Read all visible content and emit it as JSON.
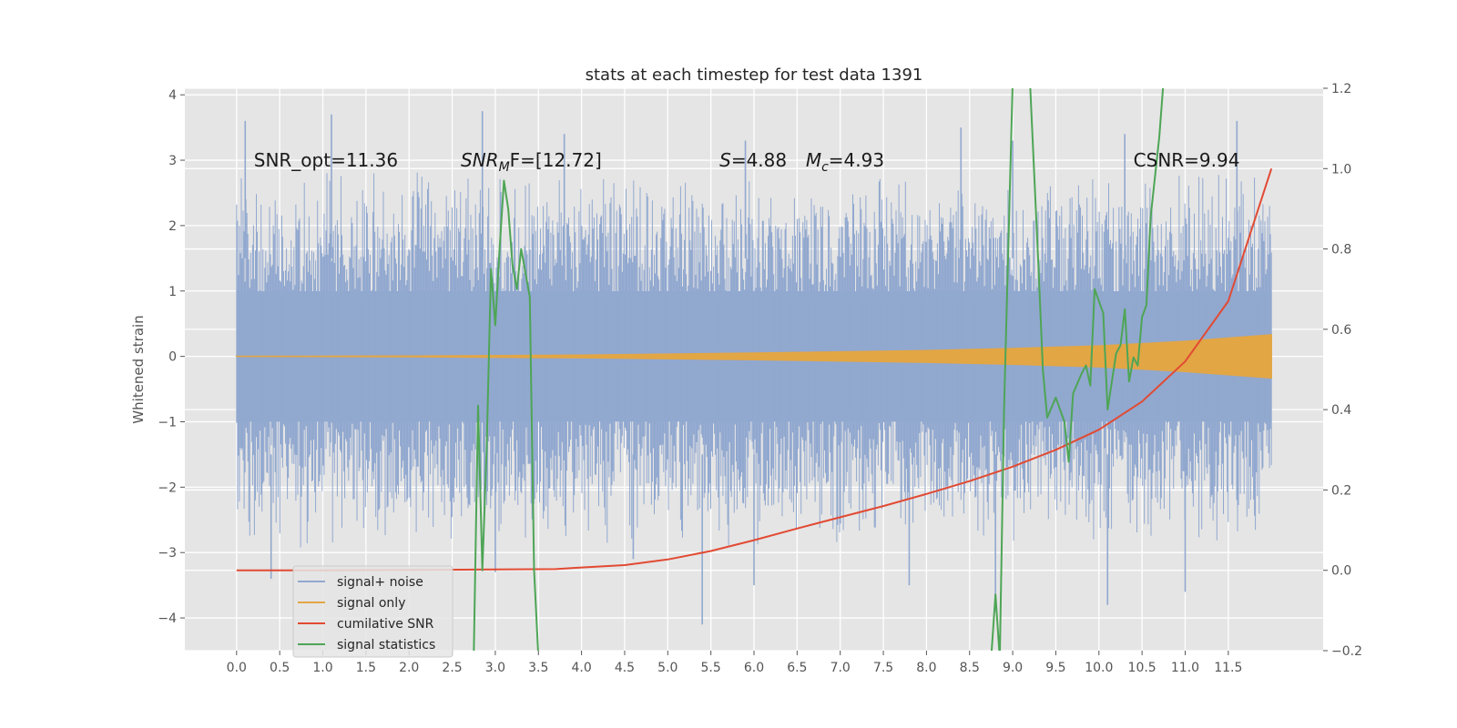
{
  "chart_data": {
    "type": "line",
    "title": "stats at each timestep for test data 1391",
    "ylabel": "Whitened strain",
    "xlabel": "",
    "xlim": [
      -0.6,
      12.6
    ],
    "ylim": [
      -4.5,
      4.1
    ],
    "y2lim": [
      -0.2,
      1.2
    ],
    "x_ticks": [
      0.0,
      0.5,
      1.0,
      1.5,
      2.0,
      2.5,
      3.0,
      3.5,
      4.0,
      4.5,
      5.0,
      5.5,
      6.0,
      6.5,
      7.0,
      7.5,
      8.0,
      8.5,
      9.0,
      9.5,
      10.0,
      10.5,
      11.0,
      11.5
    ],
    "x_tick_labels": [
      "0.0",
      "0.5",
      "1.0",
      "1.5",
      "2.0",
      "2.5",
      "3.0",
      "3.5",
      "4.0",
      "4.5",
      "5.0",
      "5.5",
      "6.0",
      "6.5",
      "7.0",
      "7.5",
      "8.0",
      "8.5",
      "9.0",
      "9.5",
      "10.0",
      "10.5",
      "11.0",
      "11.5"
    ],
    "y_ticks": [
      -4,
      -3,
      -2,
      -1,
      0,
      1,
      2,
      3,
      4
    ],
    "y_tick_labels": [
      "−4",
      "−3",
      "−2",
      "−1",
      "0",
      "1",
      "2",
      "3",
      "4"
    ],
    "y2_ticks": [
      -0.2,
      0.0,
      0.2,
      0.4,
      0.6,
      0.8,
      1.0,
      1.2
    ],
    "y2_tick_labels": [
      "−0.2",
      "0.0",
      "0.2",
      "0.4",
      "0.6",
      "0.8",
      "1.0",
      "1.2"
    ],
    "grid": true,
    "legend_position": "lower-left",
    "annotations": [
      {
        "pre": "SNR_opt=11.36",
        "sym": "",
        "sub": "",
        "post": "",
        "x": 0.2,
        "y": 2.9
      },
      {
        "pre": "",
        "sym": "SNR",
        "sub": "M",
        "post": "F=[12.72]",
        "x": 2.6,
        "y": 2.9
      },
      {
        "pre": "",
        "sym": "S",
        "sub": "",
        "post": "=4.88",
        "x": 5.6,
        "y": 2.9
      },
      {
        "pre": "",
        "sym": "M",
        "sub": "c",
        "post": "=4.93",
        "x": 6.6,
        "y": 2.9
      },
      {
        "pre": "CSNR=9.94",
        "sym": "",
        "sub": "",
        "post": "",
        "x": 10.4,
        "y": 2.9
      }
    ],
    "series": [
      {
        "name": "signal+ noise",
        "color": "#91a8cf",
        "axis": "left",
        "kind": "noise",
        "x_start": 0.0,
        "x_end": 12.0,
        "envelope_upper": [
          [
            0.0,
            2.9
          ],
          [
            12.0,
            2.9
          ]
        ],
        "envelope_lower": [
          [
            0.0,
            -3.0
          ],
          [
            12.0,
            -3.0
          ]
        ],
        "core_range": [
          -1.0,
          1.0
        ],
        "spikes_high": [
          [
            0.1,
            3.6
          ],
          [
            1.1,
            3.7
          ],
          [
            2.85,
            3.75
          ],
          [
            8.4,
            3.5
          ],
          [
            9.0,
            3.3
          ],
          [
            11.6,
            3.6
          ],
          [
            3.8,
            3.4
          ],
          [
            5.9,
            3.3
          ],
          [
            10.3,
            3.4
          ]
        ],
        "spikes_low": [
          [
            0.4,
            -3.4
          ],
          [
            3.0,
            -3.3
          ],
          [
            5.4,
            -4.1
          ],
          [
            6.0,
            -3.5
          ],
          [
            8.8,
            -3.9
          ],
          [
            10.1,
            -3.8
          ],
          [
            11.0,
            -3.6
          ],
          [
            7.8,
            -3.5
          ],
          [
            4.6,
            -3.1
          ]
        ]
      },
      {
        "name": "signal only",
        "color": "#e2a645",
        "axis": "left",
        "kind": "chirp",
        "amplitude": [
          [
            0.0,
            0.0
          ],
          [
            2.0,
            0.005
          ],
          [
            4.0,
            0.02
          ],
          [
            6.0,
            0.05
          ],
          [
            8.0,
            0.09
          ],
          [
            9.0,
            0.12
          ],
          [
            10.0,
            0.16
          ],
          [
            11.0,
            0.23
          ],
          [
            12.0,
            0.33
          ]
        ]
      },
      {
        "name": "cumilative SNR",
        "color": "#e24a33",
        "axis": "right",
        "kind": "line",
        "points": [
          [
            0.0,
            0.0
          ],
          [
            1.0,
            0.0
          ],
          [
            2.0,
            0.001
          ],
          [
            3.0,
            0.002
          ],
          [
            3.7,
            0.003
          ],
          [
            4.0,
            0.007
          ],
          [
            4.5,
            0.013
          ],
          [
            5.0,
            0.027
          ],
          [
            5.5,
            0.048
          ],
          [
            6.0,
            0.075
          ],
          [
            6.5,
            0.104
          ],
          [
            7.0,
            0.132
          ],
          [
            7.5,
            0.16
          ],
          [
            8.0,
            0.19
          ],
          [
            8.5,
            0.222
          ],
          [
            9.0,
            0.258
          ],
          [
            9.5,
            0.3
          ],
          [
            10.0,
            0.35
          ],
          [
            10.5,
            0.42
          ],
          [
            11.0,
            0.52
          ],
          [
            11.5,
            0.67
          ],
          [
            12.0,
            1.0
          ]
        ]
      },
      {
        "name": "signal statistics",
        "color": "#4ea556",
        "axis": "right",
        "kind": "line",
        "points": [
          [
            2.75,
            -0.22
          ],
          [
            2.8,
            0.41
          ],
          [
            2.85,
            0.0
          ],
          [
            2.9,
            0.3
          ],
          [
            2.95,
            0.75
          ],
          [
            3.0,
            0.61
          ],
          [
            3.05,
            0.8
          ],
          [
            3.1,
            0.97
          ],
          [
            3.15,
            0.9
          ],
          [
            3.2,
            0.76
          ],
          [
            3.25,
            0.7
          ],
          [
            3.3,
            0.8
          ],
          [
            3.35,
            0.74
          ],
          [
            3.4,
            0.68
          ],
          [
            3.45,
            0.0
          ],
          [
            3.5,
            -0.22
          ]
        ]
      },
      {
        "name": "signal statistics",
        "color": "#4ea556",
        "axis": "right",
        "kind": "line",
        "points": [
          [
            8.75,
            -0.22
          ],
          [
            8.8,
            -0.06
          ],
          [
            8.85,
            -0.22
          ],
          [
            8.9,
            0.4
          ],
          [
            9.0,
            1.22
          ]
        ]
      },
      {
        "name": "signal statistics",
        "color": "#4ea556",
        "axis": "right",
        "kind": "line",
        "points": [
          [
            9.2,
            1.22
          ],
          [
            9.3,
            0.75
          ],
          [
            9.35,
            0.5
          ],
          [
            9.4,
            0.38
          ],
          [
            9.5,
            0.43
          ],
          [
            9.6,
            0.37
          ],
          [
            9.65,
            0.27
          ],
          [
            9.7,
            0.44
          ],
          [
            9.8,
            0.49
          ],
          [
            9.85,
            0.51
          ],
          [
            9.9,
            0.46
          ],
          [
            9.95,
            0.7
          ],
          [
            10.05,
            0.64
          ],
          [
            10.1,
            0.4
          ],
          [
            10.2,
            0.54
          ],
          [
            10.25,
            0.56
          ],
          [
            10.3,
            0.65
          ],
          [
            10.35,
            0.47
          ],
          [
            10.4,
            0.53
          ],
          [
            10.45,
            0.51
          ],
          [
            10.5,
            0.63
          ],
          [
            10.55,
            0.66
          ],
          [
            10.6,
            0.88
          ],
          [
            10.7,
            1.08
          ],
          [
            10.75,
            1.22
          ]
        ]
      }
    ],
    "legend": [
      {
        "label": "signal+ noise",
        "color": "#91a8cf"
      },
      {
        "label": "signal only",
        "color": "#e2a645"
      },
      {
        "label": "cumilative SNR",
        "color": "#e24a33"
      },
      {
        "label": "signal statistics",
        "color": "#4ea556"
      }
    ]
  }
}
